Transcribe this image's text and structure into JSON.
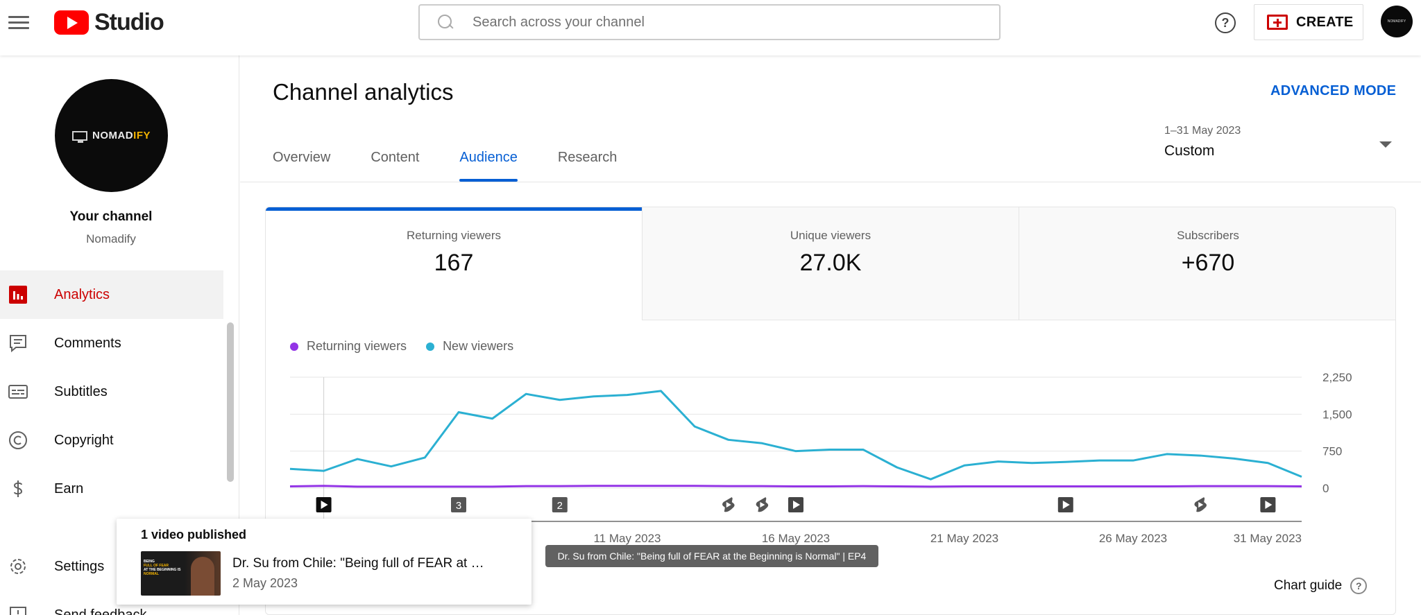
{
  "header": {
    "logo_text": "Studio",
    "search_placeholder": "Search across your channel",
    "help_glyph": "?",
    "create_label": "CREATE",
    "avatar_text": "NOMADIFY"
  },
  "sidebar": {
    "channel_logo": {
      "text_main": "NOMAD",
      "text_accent": "IFY"
    },
    "your_channel": "Your channel",
    "channel_name": "Nomadify",
    "items": [
      {
        "label": "Analytics",
        "icon": "analytics-icon",
        "active": true
      },
      {
        "label": "Comments",
        "icon": "comments-icon"
      },
      {
        "label": "Subtitles",
        "icon": "subtitles-icon"
      },
      {
        "label": "Copyright",
        "icon": "copyright-icon"
      },
      {
        "label": "Earn",
        "icon": "earn-icon"
      },
      {
        "label": "Settings",
        "icon": "settings-icon"
      },
      {
        "label": "Send feedback",
        "icon": "feedback-icon"
      }
    ]
  },
  "main": {
    "title": "Channel analytics",
    "advanced_mode": "ADVANCED MODE",
    "tabs": [
      {
        "label": "Overview"
      },
      {
        "label": "Content"
      },
      {
        "label": "Audience",
        "active": true
      },
      {
        "label": "Research"
      }
    ],
    "date_range": "1–31 May 2023",
    "date_label": "Custom"
  },
  "metrics": [
    {
      "label": "Returning viewers",
      "value": "167",
      "active": true
    },
    {
      "label": "Unique viewers",
      "value": "27.0K"
    },
    {
      "label": "Subscribers",
      "value": "+670"
    }
  ],
  "chart_guide": "Chart guide",
  "chart_data": {
    "type": "line",
    "x": [
      1,
      2,
      3,
      4,
      5,
      6,
      7,
      8,
      9,
      10,
      11,
      12,
      13,
      14,
      15,
      16,
      17,
      18,
      19,
      20,
      21,
      22,
      23,
      24,
      25,
      26,
      27,
      28,
      29,
      30,
      31
    ],
    "series": [
      {
        "name": "Returning viewers",
        "color": "#9334e6",
        "values": [
          35,
          45,
          30,
          30,
          30,
          30,
          30,
          40,
          40,
          45,
          45,
          45,
          45,
          40,
          40,
          35,
          35,
          40,
          35,
          30,
          35,
          35,
          35,
          35,
          35,
          35,
          35,
          40,
          40,
          40,
          35
        ]
      },
      {
        "name": "New viewers",
        "color": "#2bb0d2",
        "values": [
          390,
          350,
          590,
          440,
          620,
          1540,
          1410,
          1910,
          1790,
          1860,
          1890,
          1970,
          1250,
          980,
          910,
          750,
          780,
          780,
          420,
          180,
          460,
          540,
          510,
          530,
          560,
          560,
          690,
          660,
          600,
          510,
          230
        ]
      }
    ],
    "x_ticks": [
      "11 May 2023",
      "16 May 2023",
      "21 May 2023",
      "26 May 2023",
      "31 May 2023"
    ],
    "x_tick_days": [
      11,
      16,
      21,
      26,
      31
    ],
    "y_ticks": [
      "0",
      "750",
      "1,500",
      "2,250"
    ],
    "y_tick_values": [
      0,
      750,
      1500,
      2250
    ],
    "ylim": [
      0,
      2250
    ],
    "grid": true,
    "legend_position": "top-left",
    "markers": [
      {
        "day": 2,
        "kind": "video"
      },
      {
        "day": 6,
        "kind": "count",
        "label": "3"
      },
      {
        "day": 9,
        "kind": "count",
        "label": "2"
      },
      {
        "day": 14,
        "kind": "short"
      },
      {
        "day": 15,
        "kind": "short"
      },
      {
        "day": 16,
        "kind": "video"
      },
      {
        "day": 24,
        "kind": "video"
      },
      {
        "day": 28,
        "kind": "short"
      },
      {
        "day": 30,
        "kind": "video"
      }
    ]
  },
  "tooltip": "Dr. Su from Chile: \"Being full of FEAR at the Beginning is Normal\" | EP4",
  "published_popup": {
    "title": "1 video published",
    "video_title": "Dr. Su from Chile: \"Being full of FEAR at …",
    "video_date": "2 May 2023",
    "thumb_lines": [
      "BEING",
      "FULL OF FEAR",
      "AT THE BEGINNING IS",
      "NORMAL"
    ]
  }
}
